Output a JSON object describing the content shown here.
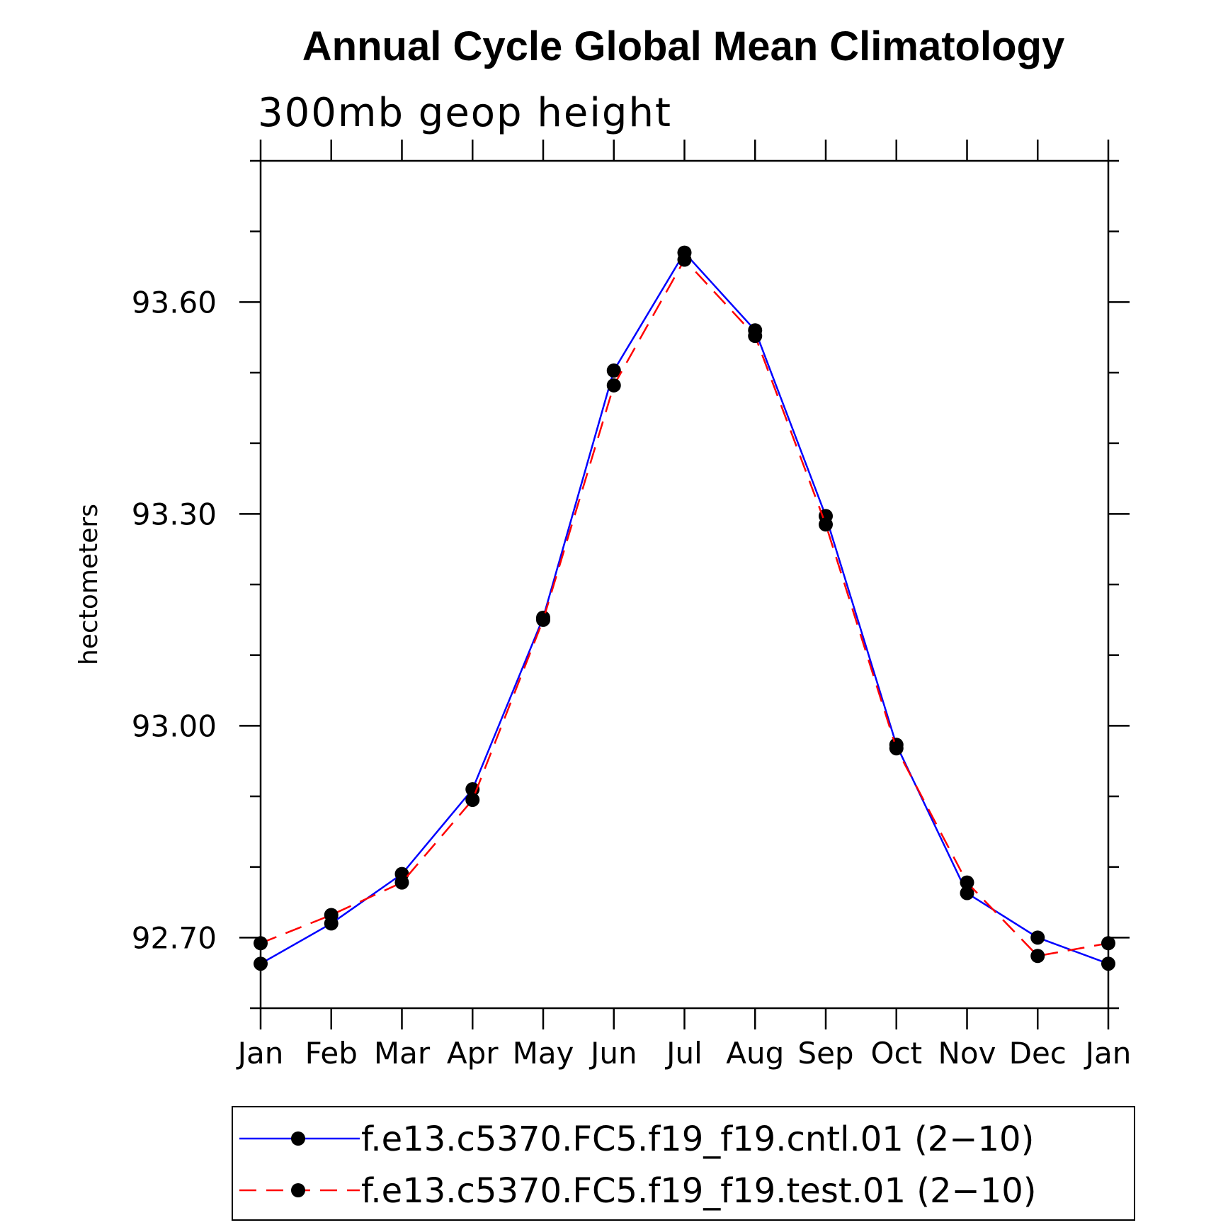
{
  "chart_data": {
    "type": "line",
    "title": "Annual Cycle Global Mean Climatology",
    "subtitle": "300mb geop height",
    "ylabel": "hectometers",
    "xlabel": "",
    "categories": [
      "Jan",
      "Feb",
      "Mar",
      "Apr",
      "May",
      "Jun",
      "Jul",
      "Aug",
      "Sep",
      "Oct",
      "Nov",
      "Dec",
      "Jan"
    ],
    "ylim": [
      92.6,
      93.8
    ],
    "y_major_ticks": [
      92.7,
      93.0,
      93.3,
      93.6
    ],
    "y_tick_labels": [
      "92.70",
      "93.00",
      "93.30",
      "93.60"
    ],
    "grid": false,
    "legend_position": "bottom",
    "series": [
      {
        "name": "f.e13.c5370.FC5.f19_f19.cntl.01 (2−10)",
        "color": "#0000ff",
        "line_style": "solid",
        "marker": "filled-circle",
        "values": [
          92.663,
          92.72,
          92.79,
          92.91,
          93.153,
          93.503,
          93.67,
          93.56,
          93.297,
          92.973,
          92.763,
          92.7,
          92.663
        ]
      },
      {
        "name": "f.e13.c5370.FC5.f19_f19.test.01 (2−10)",
        "color": "#ff0000",
        "line_style": "dashed",
        "marker": "filled-circle",
        "values": [
          92.692,
          92.732,
          92.778,
          92.895,
          93.15,
          93.482,
          93.66,
          93.552,
          93.285,
          92.968,
          92.778,
          92.674,
          92.692
        ]
      }
    ]
  }
}
